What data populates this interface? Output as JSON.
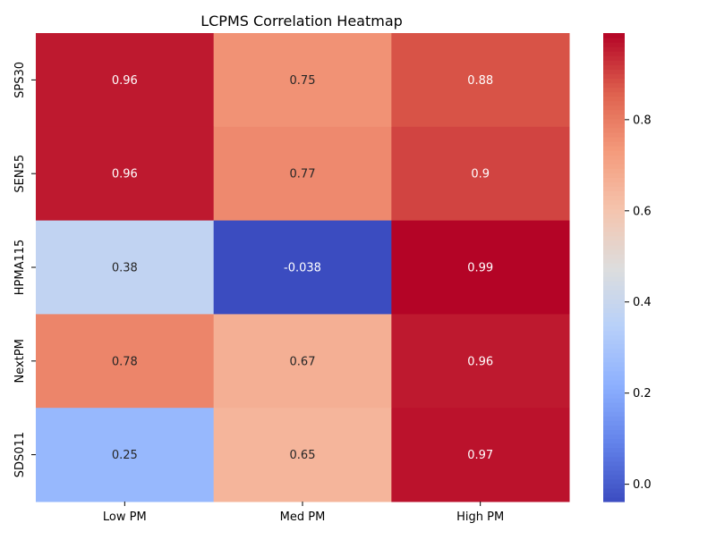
{
  "chart_data": {
    "type": "heatmap",
    "title": "LCPMS Correlation Heatmap",
    "xlabel": "",
    "ylabel": "",
    "x_categories": [
      "Low PM",
      "Med PM",
      "High PM"
    ],
    "y_categories": [
      "SPS30",
      "SEN55",
      "HPMA115",
      "NextPM",
      "SDS011"
    ],
    "values": [
      [
        0.96,
        0.75,
        0.88
      ],
      [
        0.96,
        0.77,
        0.9
      ],
      [
        0.38,
        -0.038,
        0.99
      ],
      [
        0.78,
        0.67,
        0.96
      ],
      [
        0.25,
        0.65,
        0.97
      ]
    ],
    "cell_labels": [
      [
        "0.96",
        "0.75",
        "0.88"
      ],
      [
        "0.96",
        "0.77",
        "0.9"
      ],
      [
        "0.38",
        "-0.038",
        "0.99"
      ],
      [
        "0.78",
        "0.67",
        "0.96"
      ],
      [
        "0.25",
        "0.65",
        "0.97"
      ]
    ],
    "colormap": "coolwarm",
    "color_range": [
      -0.038,
      0.99
    ],
    "colorbar_ticks": [
      0.0,
      0.2,
      0.4,
      0.6,
      0.8
    ],
    "colorbar_tick_labels": [
      "0.0",
      "0.2",
      "0.4",
      "0.6",
      "0.8"
    ],
    "colorbar_position": "right"
  }
}
